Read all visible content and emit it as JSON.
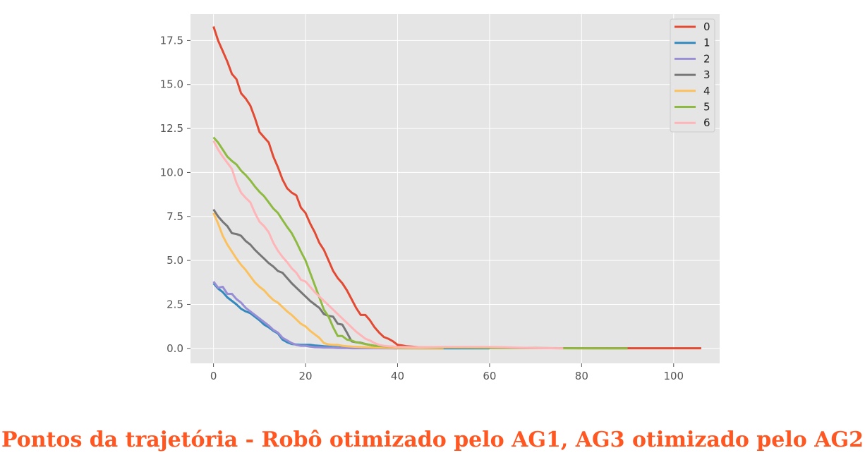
{
  "caption": "Pontos da trajetória - Robô otimizado pelo AG1, AG3 otimizado pelo AG2",
  "chart_data": {
    "type": "line",
    "title": "",
    "xlabel": "",
    "ylabel": "",
    "xlim": [
      -5,
      110
    ],
    "ylim": [
      -0.85,
      19.0
    ],
    "xticks": [
      0,
      20,
      40,
      60,
      80,
      100
    ],
    "xtick_labels": [
      "0",
      "20",
      "40",
      "60",
      "80",
      "100"
    ],
    "yticks": [
      0.0,
      2.5,
      5.0,
      7.5,
      10.0,
      12.5,
      15.0,
      17.5
    ],
    "ytick_labels": [
      "0.0",
      "2.5",
      "5.0",
      "7.5",
      "10.0",
      "12.5",
      "15.0",
      "17.5"
    ],
    "grid": true,
    "legend_position": "top-right",
    "series": [
      {
        "name": "0",
        "color": "#e24a33",
        "x": [
          0,
          1,
          2,
          3,
          4,
          5,
          6,
          7,
          8,
          9,
          10,
          11,
          12,
          13,
          14,
          15,
          16,
          17,
          18,
          19,
          20,
          21,
          22,
          23,
          24,
          25,
          26,
          27,
          28,
          29,
          30,
          31,
          32,
          33,
          34,
          35,
          36,
          37,
          38,
          39,
          40,
          41,
          42,
          43,
          44,
          45,
          50,
          60,
          70,
          80,
          90,
          100,
          106
        ],
        "y": [
          18.3,
          17.5,
          16.9,
          16.3,
          15.6,
          15.3,
          14.5,
          14.2,
          13.8,
          13.1,
          12.3,
          12.0,
          11.7,
          10.9,
          10.3,
          9.6,
          9.1,
          8.85,
          8.7,
          8.0,
          7.7,
          7.1,
          6.6,
          6.0,
          5.6,
          5.0,
          4.4,
          4.0,
          3.7,
          3.3,
          2.8,
          2.3,
          1.9,
          1.9,
          1.6,
          1.2,
          0.9,
          0.65,
          0.55,
          0.4,
          0.2,
          0.17,
          0.12,
          0.1,
          0.08,
          0.06,
          0.04,
          0.03,
          0.02,
          0.01,
          0.01,
          0.01,
          0.01
        ]
      },
      {
        "name": "1",
        "color": "#348abd",
        "x": [
          0,
          1,
          2,
          3,
          4,
          5,
          6,
          7,
          8,
          9,
          10,
          11,
          12,
          13,
          14,
          15,
          16,
          17,
          18,
          19,
          20,
          21,
          22,
          23,
          24,
          25,
          26,
          27,
          28,
          29,
          30,
          35,
          40,
          50,
          60
        ],
        "y": [
          3.7,
          3.4,
          3.2,
          2.9,
          2.7,
          2.5,
          2.25,
          2.1,
          2.0,
          1.8,
          1.6,
          1.35,
          1.2,
          1.0,
          0.85,
          0.5,
          0.35,
          0.25,
          0.22,
          0.2,
          0.2,
          0.2,
          0.17,
          0.15,
          0.12,
          0.1,
          0.08,
          0.06,
          0.05,
          0.04,
          0.03,
          0.02,
          0.01,
          0.0,
          0.0
        ]
      },
      {
        "name": "2",
        "color": "#988ed5",
        "x": [
          0,
          1,
          2,
          3,
          4,
          5,
          6,
          7,
          8,
          9,
          10,
          11,
          12,
          13,
          14,
          15,
          16,
          17,
          18,
          19,
          20,
          21,
          22,
          23,
          24,
          25,
          26,
          27,
          28,
          29,
          30,
          35,
          40
        ],
        "y": [
          3.8,
          3.45,
          3.5,
          3.1,
          3.1,
          2.8,
          2.6,
          2.3,
          2.1,
          1.9,
          1.7,
          1.5,
          1.3,
          1.05,
          0.9,
          0.6,
          0.45,
          0.3,
          0.2,
          0.15,
          0.15,
          0.1,
          0.07,
          0.06,
          0.05,
          0.05,
          0.04,
          0.03,
          0.02,
          0.02,
          0.01,
          0.01,
          0.0
        ]
      },
      {
        "name": "3",
        "color": "#777777",
        "x": [
          0,
          1,
          2,
          3,
          4,
          5,
          6,
          7,
          8,
          9,
          10,
          11,
          12,
          13,
          14,
          15,
          16,
          17,
          18,
          19,
          20,
          21,
          22,
          23,
          24,
          25,
          26,
          27,
          28,
          29,
          30,
          31,
          32,
          33,
          34,
          35,
          40,
          45,
          50
        ],
        "y": [
          7.9,
          7.5,
          7.2,
          6.95,
          6.55,
          6.5,
          6.4,
          6.1,
          5.9,
          5.6,
          5.35,
          5.1,
          4.85,
          4.65,
          4.4,
          4.3,
          4.0,
          3.7,
          3.45,
          3.2,
          2.95,
          2.7,
          2.5,
          2.3,
          1.95,
          1.85,
          1.8,
          1.4,
          1.35,
          0.9,
          0.4,
          0.35,
          0.32,
          0.25,
          0.2,
          0.15,
          0.08,
          0.04,
          0.02
        ]
      },
      {
        "name": "4",
        "color": "#fbc15e",
        "x": [
          0,
          1,
          2,
          3,
          4,
          5,
          6,
          7,
          8,
          9,
          10,
          11,
          12,
          13,
          14,
          15,
          16,
          17,
          18,
          19,
          20,
          21,
          22,
          23,
          24,
          25,
          26,
          27,
          28,
          29,
          30,
          35,
          40,
          50
        ],
        "y": [
          7.7,
          7.1,
          6.4,
          5.9,
          5.5,
          5.1,
          4.75,
          4.45,
          4.1,
          3.75,
          3.5,
          3.3,
          3.0,
          2.75,
          2.6,
          2.35,
          2.1,
          1.9,
          1.65,
          1.4,
          1.25,
          1.0,
          0.8,
          0.6,
          0.3,
          0.22,
          0.2,
          0.2,
          0.15,
          0.12,
          0.1,
          0.05,
          0.02,
          0.0
        ]
      },
      {
        "name": "5",
        "color": "#8eba42",
        "x": [
          0,
          1,
          2,
          3,
          4,
          5,
          6,
          7,
          8,
          9,
          10,
          11,
          12,
          13,
          14,
          15,
          16,
          17,
          18,
          19,
          20,
          21,
          22,
          23,
          24,
          25,
          26,
          27,
          28,
          29,
          30,
          31,
          32,
          33,
          34,
          35,
          40,
          50,
          60,
          70,
          76,
          80,
          86,
          90
        ],
        "y": [
          12.0,
          11.7,
          11.3,
          10.9,
          10.65,
          10.45,
          10.1,
          9.85,
          9.55,
          9.2,
          8.9,
          8.65,
          8.3,
          7.95,
          7.7,
          7.3,
          6.9,
          6.55,
          6.05,
          5.5,
          5.0,
          4.3,
          3.6,
          2.9,
          2.2,
          1.8,
          1.2,
          0.7,
          0.7,
          0.5,
          0.45,
          0.35,
          0.3,
          0.25,
          0.2,
          0.15,
          0.08,
          0.05,
          0.03,
          0.02,
          0.01,
          0.01,
          0.0,
          0.0
        ]
      },
      {
        "name": "6",
        "color": "#ffb5b8",
        "x": [
          0,
          1,
          2,
          3,
          4,
          5,
          6,
          7,
          8,
          9,
          10,
          11,
          12,
          13,
          14,
          15,
          16,
          17,
          18,
          19,
          20,
          21,
          22,
          23,
          24,
          25,
          26,
          27,
          28,
          29,
          30,
          31,
          32,
          33,
          34,
          35,
          36,
          37,
          38,
          39,
          40,
          45,
          50,
          60,
          63,
          66,
          70,
          76
        ],
        "y": [
          11.8,
          11.3,
          10.9,
          10.55,
          10.2,
          9.4,
          8.85,
          8.55,
          8.3,
          7.7,
          7.2,
          6.95,
          6.6,
          6.0,
          5.55,
          5.2,
          4.9,
          4.55,
          4.3,
          3.9,
          3.8,
          3.5,
          3.2,
          2.95,
          2.7,
          2.45,
          2.2,
          1.95,
          1.7,
          1.45,
          1.2,
          0.95,
          0.75,
          0.55,
          0.45,
          0.3,
          0.2,
          0.15,
          0.12,
          0.1,
          0.08,
          0.07,
          0.08,
          0.08,
          0.07,
          0.04,
          0.02,
          0.01
        ]
      }
    ]
  }
}
